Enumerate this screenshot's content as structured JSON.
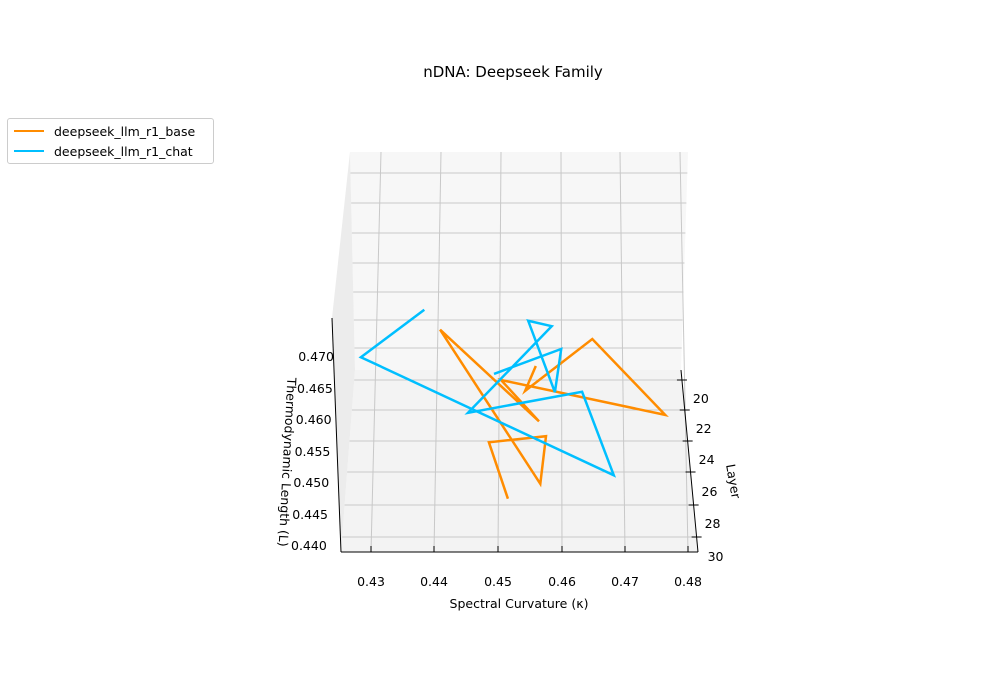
{
  "chart_data": {
    "type": "line3d",
    "title": "nDNA: Deepseek Family",
    "xlabel": "Spectral Curvature (κ)",
    "ylabel": "Thermodynamic Length (L)",
    "zlabel": "Layer",
    "xlim": [
      0.425,
      0.48
    ],
    "ylim": [
      0.439,
      0.473
    ],
    "zlim": [
      20,
      30
    ],
    "xticks": [
      "0.43",
      "0.44",
      "0.45",
      "0.46",
      "0.47",
      "0.48"
    ],
    "yticks": [
      "0.440",
      "0.445",
      "0.450",
      "0.455",
      "0.460",
      "0.465",
      "0.470"
    ],
    "zticks": [
      "20",
      "22",
      "24",
      "26",
      "28",
      "30"
    ],
    "grid": true,
    "legend_position": "upper-left",
    "series": [
      {
        "name": "deepseek_llm_r1_base",
        "color": "#ff8c00",
        "layer": [
          20,
          21,
          22,
          23,
          24,
          25,
          26,
          27,
          28,
          29,
          30
        ],
        "kappa": [
          0.456,
          0.4543,
          0.4649,
          0.4764,
          0.4505,
          0.4565,
          0.4409,
          0.4567,
          0.4576,
          0.4486,
          0.4516
        ],
        "L": [
          0.4408,
          0.4397,
          0.4508,
          0.4416,
          0.45,
          0.4463,
          0.4637,
          0.4421,
          0.4525,
          0.4544,
          0.4483
        ]
      },
      {
        "name": "deepseek_llm_r1_chat",
        "color": "#00bfff",
        "layer": [
          21,
          22,
          23,
          24,
          25,
          26,
          27,
          28,
          29,
          30
        ],
        "kappa": [
          0.4494,
          0.46,
          0.459,
          0.4548,
          0.4585,
          0.4453,
          0.4633,
          0.4683,
          0.4284,
          0.4384
        ],
        "L": [
          0.4424,
          0.4492,
          0.4452,
          0.4594,
          0.4614,
          0.4505,
          0.4567,
          0.4463,
          0.4679,
          0.4783
        ]
      }
    ]
  }
}
